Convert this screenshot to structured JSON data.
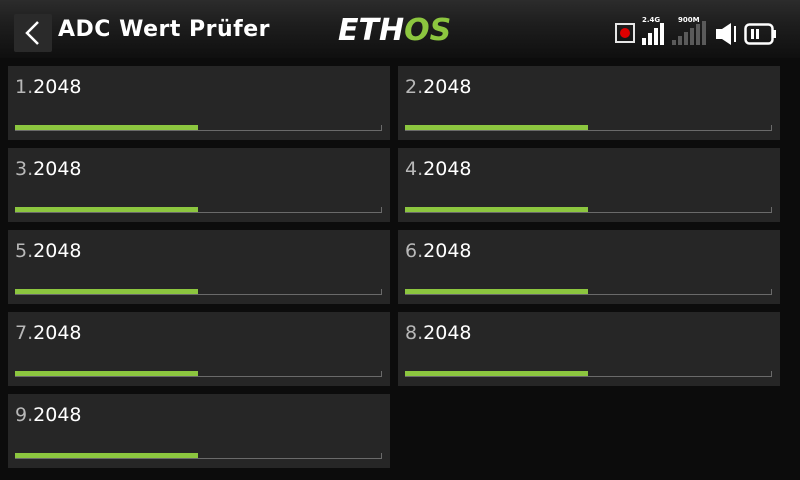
{
  "header": {
    "title": "ADC Wert Prüfer",
    "logo_left": "ETH",
    "logo_right": "OS",
    "rf1_label": "2.4G",
    "rf2_label": "900M",
    "back_icon": "chevron-left-icon",
    "record_icon": "record-icon",
    "speaker_icon": "speaker-muted-icon",
    "battery_icon": "battery-icon"
  },
  "colors": {
    "accent": "#8cc63f",
    "tile_bg": "#262626",
    "record": "#e00000"
  },
  "adc_channels": [
    {
      "index": "1.",
      "value": "2048",
      "level": 0.5
    },
    {
      "index": "2.",
      "value": "2048",
      "level": 0.5
    },
    {
      "index": "3.",
      "value": "2048",
      "level": 0.5
    },
    {
      "index": "4.",
      "value": "2048",
      "level": 0.5
    },
    {
      "index": "5.",
      "value": "2048",
      "level": 0.5
    },
    {
      "index": "6.",
      "value": "2048",
      "level": 0.5
    },
    {
      "index": "7.",
      "value": "2048",
      "level": 0.5
    },
    {
      "index": "8.",
      "value": "2048",
      "level": 0.5
    },
    {
      "index": "9.",
      "value": "2048",
      "level": 0.5
    }
  ]
}
